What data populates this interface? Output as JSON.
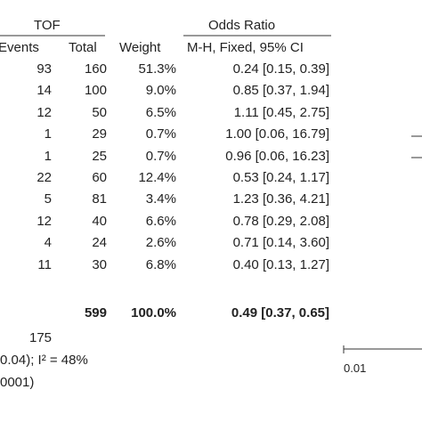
{
  "chart_data": {
    "type": "table",
    "headers": {
      "group": "TOF",
      "events": "Events",
      "total": "Total",
      "weight": "Weight",
      "odds_ratio_title": "Odds Ratio",
      "odds_ratio_method": "M-H, Fixed, 95% CI"
    },
    "rows": [
      {
        "events": "93",
        "total": "160",
        "weight": "51.3%",
        "or_ci": "0.24 [0.15, 0.39]"
      },
      {
        "events": "14",
        "total": "100",
        "weight": "9.0%",
        "or_ci": "0.85 [0.37, 1.94]"
      },
      {
        "events": "12",
        "total": "50",
        "weight": "6.5%",
        "or_ci": "1.11 [0.45, 2.75]"
      },
      {
        "events": "1",
        "total": "29",
        "weight": "0.7%",
        "or_ci": "1.00 [0.06, 16.79]"
      },
      {
        "events": "1",
        "total": "25",
        "weight": "0.7%",
        "or_ci": "0.96 [0.06, 16.23]"
      },
      {
        "events": "22",
        "total": "60",
        "weight": "12.4%",
        "or_ci": "0.53 [0.24, 1.17]"
      },
      {
        "events": "5",
        "total": "81",
        "weight": "3.4%",
        "or_ci": "1.23 [0.36, 4.21]"
      },
      {
        "events": "12",
        "total": "40",
        "weight": "6.6%",
        "or_ci": "0.78 [0.29, 2.08]"
      },
      {
        "events": "4",
        "total": "24",
        "weight": "2.6%",
        "or_ci": "0.71 [0.14, 3.60]"
      },
      {
        "events": "11",
        "total": "30",
        "weight": "6.8%",
        "or_ci": "0.40 [0.13, 1.27]"
      }
    ],
    "total_row": {
      "total": "599",
      "weight": "100.0%",
      "or_ci": "0.49 [0.37, 0.65]"
    },
    "total_events": "175",
    "heterogeneity": "0.04); I² = 48%",
    "overall_effect": "0001)",
    "axis_tick_label": "0.01"
  }
}
